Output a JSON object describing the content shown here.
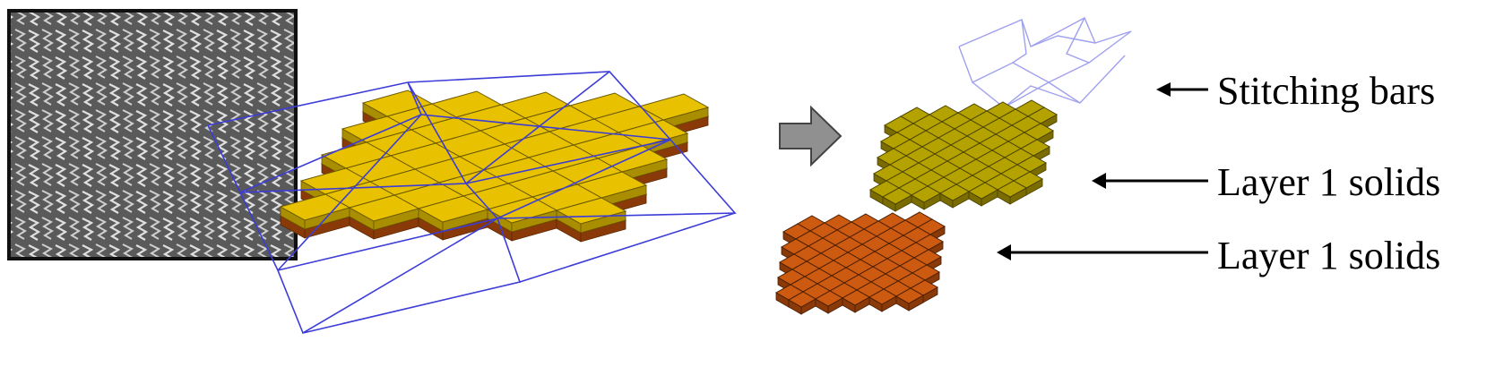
{
  "labels": {
    "stitching": "Stitching bars",
    "layer_top": "Layer 1 solids",
    "layer_bottom": "Layer 1 solids"
  },
  "colors": {
    "yellow_top": "#e8c200",
    "yellow_side": "#a88e00",
    "olive_top": "#b4a200",
    "olive_side": "#7a6c00",
    "orange_top": "#cc5a10",
    "orange_side": "#8a3a08",
    "stitch_line": "#3c3cd8",
    "stitch_light": "#a0a0f0",
    "arrow_fill": "#909090"
  },
  "icons": {
    "photo": "knit-fabric-photo",
    "big_mesh": "stitched-solid-mesh",
    "process_arrow": "block-arrow-right"
  }
}
